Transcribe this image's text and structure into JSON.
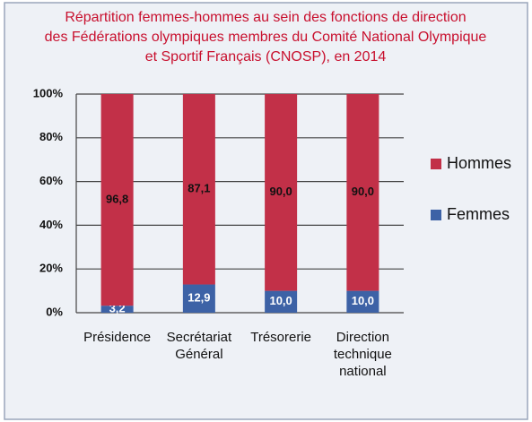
{
  "chart_data": {
    "type": "stacked_bar",
    "title": [
      "Répartition femmes-hommes au sein des fonctions de direction",
      "des Fédérations olympiques membres du Comité National Olympique",
      "et Sportif Français (CNOSP), en 2014"
    ],
    "categories": [
      "Présidence",
      "Secrétariat Général",
      "Trésorerie",
      "Direction technique national"
    ],
    "series": [
      {
        "name": "Femmes",
        "color": "#3d62a6",
        "values": [
          3.2,
          12.9,
          10.0,
          10.0
        ],
        "value_labels": [
          "3,2",
          "12,9",
          "10,0",
          "10,0"
        ]
      },
      {
        "name": "Hommes",
        "color": "#c23048",
        "values": [
          96.8,
          87.1,
          90.0,
          90.0
        ],
        "value_labels": [
          "96,8",
          "87,1",
          "90,0",
          "90,0"
        ]
      }
    ],
    "ylim": [
      0,
      100
    ],
    "yticks": [
      {
        "value": 0,
        "label": "0%"
      },
      {
        "value": 20,
        "label": "20%"
      },
      {
        "value": 40,
        "label": "40%"
      },
      {
        "value": 60,
        "label": "60%"
      },
      {
        "value": 80,
        "label": "80%"
      },
      {
        "value": 100,
        "label": "100%"
      }
    ],
    "grid": true,
    "legend": "right"
  }
}
